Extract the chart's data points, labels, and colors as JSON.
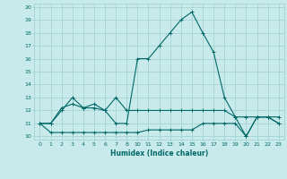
{
  "xlabel": "Humidex (Indice chaleur)",
  "background_color": "#c8eaea",
  "grid_color": "#9ecece",
  "line_color": "#006868",
  "xlim": [
    -0.5,
    22.5
  ],
  "ylim": [
    9.75,
    20.25
  ],
  "x_positions": [
    0,
    1,
    2,
    3,
    4,
    5,
    6,
    7,
    8,
    9,
    10,
    11,
    12,
    13,
    14,
    15,
    16,
    17,
    18,
    19,
    20,
    21,
    22
  ],
  "x_labels": [
    "0",
    "1",
    "2",
    "3",
    "4",
    "5",
    "6",
    "7",
    "8",
    "10",
    "11",
    "12",
    "13",
    "14",
    "15",
    "16",
    "17",
    "18",
    "19",
    "20",
    "21",
    "22",
    "23"
  ],
  "yticks": [
    10,
    11,
    12,
    13,
    14,
    15,
    16,
    17,
    18,
    19,
    20
  ],
  "series1_x": [
    0,
    1,
    2,
    3,
    4,
    5,
    6,
    7,
    8,
    9,
    10,
    11,
    12,
    13,
    14,
    15,
    16,
    17,
    18,
    19,
    20,
    21,
    22
  ],
  "series1_y": [
    11,
    11,
    12.2,
    12.5,
    12.2,
    12.2,
    12.0,
    11.0,
    11.0,
    16.0,
    16.0,
    17.0,
    18.0,
    19.0,
    19.6,
    18.0,
    16.5,
    13.0,
    11.5,
    10.0,
    11.5,
    11.5,
    11.0
  ],
  "series2_x": [
    0,
    1,
    2,
    3,
    4,
    5,
    6,
    7,
    8,
    9,
    10,
    11,
    12,
    13,
    14,
    15,
    16,
    17,
    18,
    19,
    20,
    21,
    22
  ],
  "series2_y": [
    11.0,
    11.0,
    12.0,
    13.0,
    12.2,
    12.5,
    12.0,
    13.0,
    12.0,
    12.0,
    12.0,
    12.0,
    12.0,
    12.0,
    12.0,
    12.0,
    12.0,
    12.0,
    11.5,
    11.5,
    11.5,
    11.5,
    11.5
  ],
  "series3_x": [
    0,
    1,
    2,
    3,
    4,
    5,
    6,
    7,
    8,
    9,
    10,
    11,
    12,
    13,
    14,
    15,
    16,
    17,
    18,
    19,
    20,
    21,
    22
  ],
  "series3_y": [
    11.0,
    10.3,
    10.3,
    10.3,
    10.3,
    10.3,
    10.3,
    10.3,
    10.3,
    10.3,
    10.5,
    10.5,
    10.5,
    10.5,
    10.5,
    11.0,
    11.0,
    11.0,
    11.0,
    10.0,
    11.5,
    11.5,
    11.0
  ],
  "markersize": 3,
  "linewidth": 0.8
}
